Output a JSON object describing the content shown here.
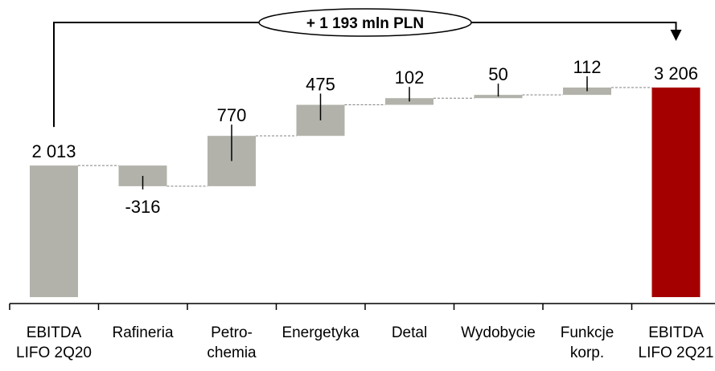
{
  "chart_data": {
    "type": "waterfall",
    "categories": [
      [
        "EBITDA",
        "LIFO 2Q20"
      ],
      [
        "Rafineria"
      ],
      [
        "Petro-",
        "chemia"
      ],
      [
        "Energetyka"
      ],
      [
        "Detal"
      ],
      [
        "Wydobycie"
      ],
      [
        "Funkcje",
        "korp."
      ],
      [
        "EBITDA",
        "LIFO 2Q21"
      ]
    ],
    "values": [
      2013,
      -316,
      770,
      475,
      102,
      50,
      112,
      3206
    ],
    "value_labels": [
      "2 013",
      "-316",
      "770",
      "475",
      "102",
      "50",
      "112",
      "3 206"
    ],
    "kinds": [
      "total",
      "delta",
      "delta",
      "delta",
      "delta",
      "delta",
      "delta",
      "total"
    ],
    "annotation": "+ 1 193 mln PLN",
    "ylim": [
      0,
      3206
    ],
    "grid": false,
    "colors": {
      "start_total": "#b2b2ab",
      "delta": "#b2b2ab",
      "end_total": "#a50000",
      "connector": "#808080",
      "axis": "#000000"
    }
  }
}
